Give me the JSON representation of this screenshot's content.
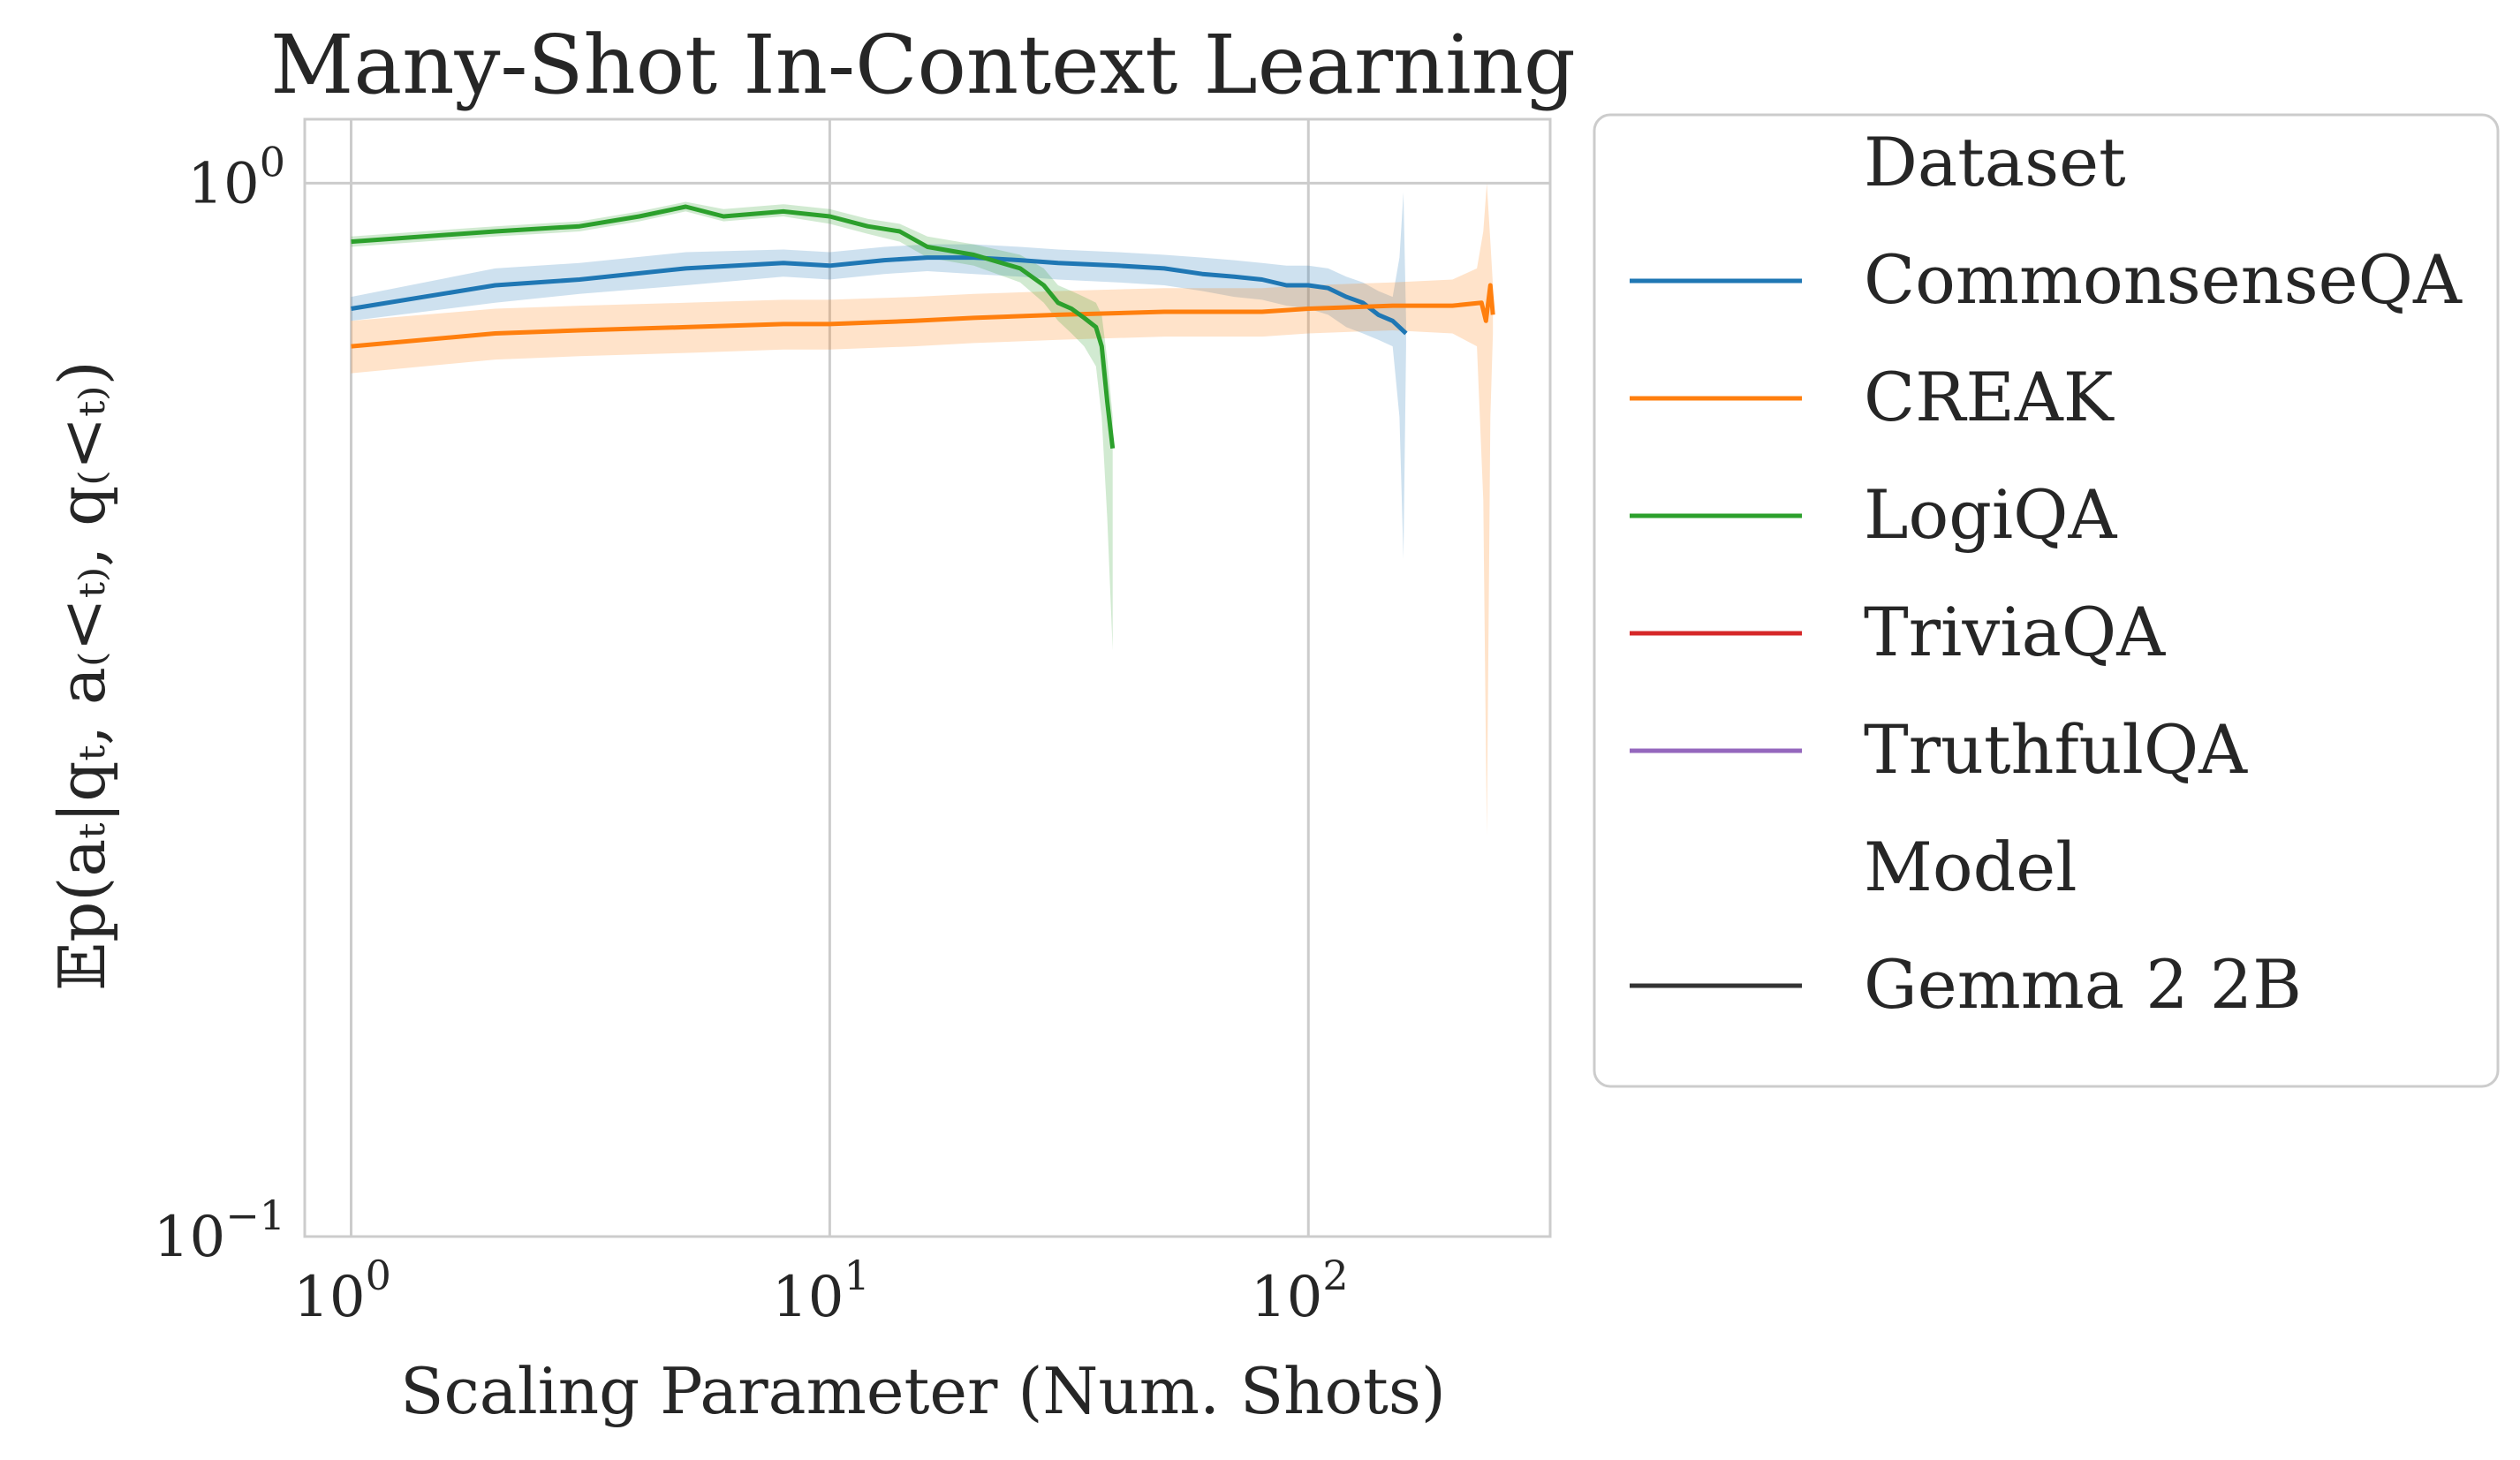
{
  "chart_data": {
    "type": "line",
    "title": "Many-Shot In-Context Learning",
    "xlabel": "Scaling Parameter (Num. Shots)",
    "ylabel": "𝔼p(aₜ|qₜ, a₍<ₜ₎, q₍<ₜ₎)",
    "xscale": "log",
    "yscale": "log",
    "xlim": [
      0.8,
      320
    ],
    "ylim": [
      0.1,
      1.15
    ],
    "xticks": [
      {
        "value": 1,
        "base": "10",
        "exp": "0"
      },
      {
        "value": 10,
        "base": "10",
        "exp": "1"
      },
      {
        "value": 100,
        "base": "10",
        "exp": "2"
      }
    ],
    "yticks": [
      {
        "value": 1,
        "base": "10",
        "exp": "0"
      },
      {
        "value": 0.1,
        "base": "10",
        "exp": "−1"
      }
    ],
    "grid": true,
    "legend_position": "outside-right",
    "legend": {
      "dataset_header": "Dataset",
      "model_header": "Model",
      "model_entries": [
        {
          "name": "Gemma 2 2B",
          "color": "#333333"
        }
      ]
    },
    "series": [
      {
        "name": "CommonsenseQA",
        "color": "#1f77b4",
        "points": [
          [
            1,
            0.76
          ],
          [
            2,
            0.8
          ],
          [
            3,
            0.81
          ],
          [
            5,
            0.83
          ],
          [
            8,
            0.84
          ],
          [
            10,
            0.835
          ],
          [
            13,
            0.845
          ],
          [
            16,
            0.85
          ],
          [
            20,
            0.85
          ],
          [
            25,
            0.845
          ],
          [
            30,
            0.84
          ],
          [
            40,
            0.835
          ],
          [
            50,
            0.83
          ],
          [
            60,
            0.82
          ],
          [
            70,
            0.815
          ],
          [
            80,
            0.81
          ],
          [
            90,
            0.8
          ],
          [
            100,
            0.8
          ],
          [
            110,
            0.795
          ],
          [
            120,
            0.78
          ],
          [
            130,
            0.77
          ],
          [
            140,
            0.75
          ],
          [
            150,
            0.74
          ],
          [
            160,
            0.72
          ]
        ],
        "lower": [
          [
            1,
            0.74
          ],
          [
            2,
            0.77
          ],
          [
            3,
            0.785
          ],
          [
            5,
            0.8
          ],
          [
            8,
            0.815
          ],
          [
            10,
            0.81
          ],
          [
            13,
            0.82
          ],
          [
            16,
            0.825
          ],
          [
            20,
            0.82
          ],
          [
            25,
            0.815
          ],
          [
            30,
            0.81
          ],
          [
            40,
            0.805
          ],
          [
            50,
            0.8
          ],
          [
            60,
            0.79
          ],
          [
            70,
            0.78
          ],
          [
            80,
            0.775
          ],
          [
            90,
            0.765
          ],
          [
            100,
            0.76
          ],
          [
            110,
            0.75
          ],
          [
            120,
            0.73
          ],
          [
            130,
            0.72
          ],
          [
            140,
            0.71
          ],
          [
            150,
            0.7
          ],
          [
            155,
            0.6
          ],
          [
            158,
            0.44
          ],
          [
            160,
            0.7
          ]
        ],
        "upper": [
          [
            1,
            0.78
          ],
          [
            2,
            0.83
          ],
          [
            3,
            0.84
          ],
          [
            5,
            0.86
          ],
          [
            8,
            0.865
          ],
          [
            10,
            0.86
          ],
          [
            13,
            0.87
          ],
          [
            16,
            0.875
          ],
          [
            20,
            0.875
          ],
          [
            25,
            0.87
          ],
          [
            30,
            0.865
          ],
          [
            40,
            0.86
          ],
          [
            50,
            0.855
          ],
          [
            60,
            0.85
          ],
          [
            70,
            0.845
          ],
          [
            80,
            0.84
          ],
          [
            90,
            0.835
          ],
          [
            100,
            0.835
          ],
          [
            110,
            0.83
          ],
          [
            120,
            0.815
          ],
          [
            130,
            0.805
          ],
          [
            140,
            0.79
          ],
          [
            150,
            0.78
          ],
          [
            155,
            0.85
          ],
          [
            158,
            0.98
          ],
          [
            160,
            0.74
          ]
        ]
      },
      {
        "name": "CREAK",
        "color": "#ff7f0e",
        "points": [
          [
            1,
            0.7
          ],
          [
            2,
            0.72
          ],
          [
            3,
            0.725
          ],
          [
            5,
            0.73
          ],
          [
            8,
            0.735
          ],
          [
            10,
            0.735
          ],
          [
            15,
            0.74
          ],
          [
            20,
            0.745
          ],
          [
            30,
            0.75
          ],
          [
            50,
            0.755
          ],
          [
            80,
            0.755
          ],
          [
            100,
            0.76
          ],
          [
            150,
            0.765
          ],
          [
            200,
            0.765
          ],
          [
            230,
            0.77
          ],
          [
            235,
            0.74
          ],
          [
            240,
            0.8
          ],
          [
            243,
            0.75
          ]
        ],
        "lower": [
          [
            1,
            0.66
          ],
          [
            2,
            0.68
          ],
          [
            3,
            0.685
          ],
          [
            5,
            0.69
          ],
          [
            8,
            0.695
          ],
          [
            10,
            0.695
          ],
          [
            15,
            0.7
          ],
          [
            20,
            0.705
          ],
          [
            30,
            0.71
          ],
          [
            50,
            0.715
          ],
          [
            80,
            0.715
          ],
          [
            100,
            0.72
          ],
          [
            150,
            0.725
          ],
          [
            200,
            0.72
          ],
          [
            225,
            0.7
          ],
          [
            232,
            0.5
          ],
          [
            236,
            0.24
          ],
          [
            240,
            0.6
          ],
          [
            243,
            0.72
          ]
        ],
        "upper": [
          [
            1,
            0.74
          ],
          [
            2,
            0.76
          ],
          [
            3,
            0.765
          ],
          [
            5,
            0.77
          ],
          [
            8,
            0.775
          ],
          [
            10,
            0.775
          ],
          [
            15,
            0.78
          ],
          [
            20,
            0.785
          ],
          [
            30,
            0.79
          ],
          [
            50,
            0.795
          ],
          [
            80,
            0.795
          ],
          [
            100,
            0.8
          ],
          [
            150,
            0.805
          ],
          [
            200,
            0.81
          ],
          [
            225,
            0.83
          ],
          [
            232,
            0.9
          ],
          [
            236,
            1.0
          ],
          [
            240,
            0.88
          ],
          [
            243,
            0.8
          ]
        ]
      },
      {
        "name": "LogiQA",
        "color": "#2ca02c",
        "points": [
          [
            1,
            0.88
          ],
          [
            2,
            0.9
          ],
          [
            3,
            0.91
          ],
          [
            4,
            0.93
          ],
          [
            5,
            0.95
          ],
          [
            6,
            0.93
          ],
          [
            8,
            0.94
          ],
          [
            10,
            0.93
          ],
          [
            12,
            0.91
          ],
          [
            14,
            0.9
          ],
          [
            16,
            0.87
          ],
          [
            20,
            0.855
          ],
          [
            25,
            0.83
          ],
          [
            28,
            0.8
          ],
          [
            30,
            0.77
          ],
          [
            32,
            0.76
          ],
          [
            34,
            0.745
          ],
          [
            36,
            0.73
          ],
          [
            37,
            0.7
          ],
          [
            38,
            0.62
          ],
          [
            39,
            0.56
          ]
        ],
        "lower": [
          [
            1,
            0.87
          ],
          [
            2,
            0.89
          ],
          [
            3,
            0.9
          ],
          [
            4,
            0.92
          ],
          [
            5,
            0.94
          ],
          [
            6,
            0.92
          ],
          [
            8,
            0.93
          ],
          [
            10,
            0.915
          ],
          [
            12,
            0.895
          ],
          [
            14,
            0.88
          ],
          [
            16,
            0.85
          ],
          [
            20,
            0.835
          ],
          [
            25,
            0.805
          ],
          [
            28,
            0.77
          ],
          [
            30,
            0.74
          ],
          [
            32,
            0.72
          ],
          [
            34,
            0.7
          ],
          [
            36,
            0.67
          ],
          [
            37,
            0.6
          ],
          [
            38,
            0.48
          ],
          [
            39,
            0.36
          ]
        ],
        "upper": [
          [
            1,
            0.89
          ],
          [
            2,
            0.91
          ],
          [
            3,
            0.92
          ],
          [
            4,
            0.94
          ],
          [
            5,
            0.96
          ],
          [
            6,
            0.945
          ],
          [
            8,
            0.955
          ],
          [
            10,
            0.945
          ],
          [
            12,
            0.925
          ],
          [
            14,
            0.915
          ],
          [
            16,
            0.89
          ],
          [
            20,
            0.875
          ],
          [
            25,
            0.855
          ],
          [
            28,
            0.83
          ],
          [
            30,
            0.8
          ],
          [
            32,
            0.79
          ],
          [
            34,
            0.78
          ],
          [
            36,
            0.77
          ],
          [
            37,
            0.75
          ],
          [
            38,
            0.68
          ],
          [
            39,
            0.6
          ]
        ]
      },
      {
        "name": "TriviaQA",
        "color": "#d62728",
        "points": [],
        "lower": [],
        "upper": []
      },
      {
        "name": "TruthfulQA",
        "color": "#9467bd",
        "points": [],
        "lower": [],
        "upper": []
      }
    ]
  }
}
